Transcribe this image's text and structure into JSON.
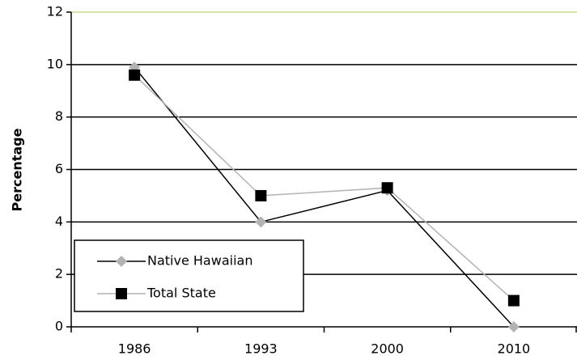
{
  "chart_data": {
    "type": "line",
    "y_label": "Percentage",
    "categories": [
      "1986",
      "1993",
      "2000",
      "2010"
    ],
    "series": [
      {
        "name": "Native Hawaiian",
        "color": "#000000",
        "marker_color": "#b3b3b3",
        "marker": "diamond",
        "values": [
          9.9,
          4.0,
          5.2,
          0.0
        ]
      },
      {
        "name": "Total State",
        "color": "#b3b3b3",
        "marker_color": "#000000",
        "marker": "square",
        "values": [
          9.6,
          5.0,
          5.3,
          1.0
        ]
      }
    ],
    "ylim": [
      0,
      12
    ],
    "yticks": [
      0,
      2,
      4,
      6,
      8,
      10,
      12
    ],
    "grid": true,
    "legend": "lower left"
  }
}
